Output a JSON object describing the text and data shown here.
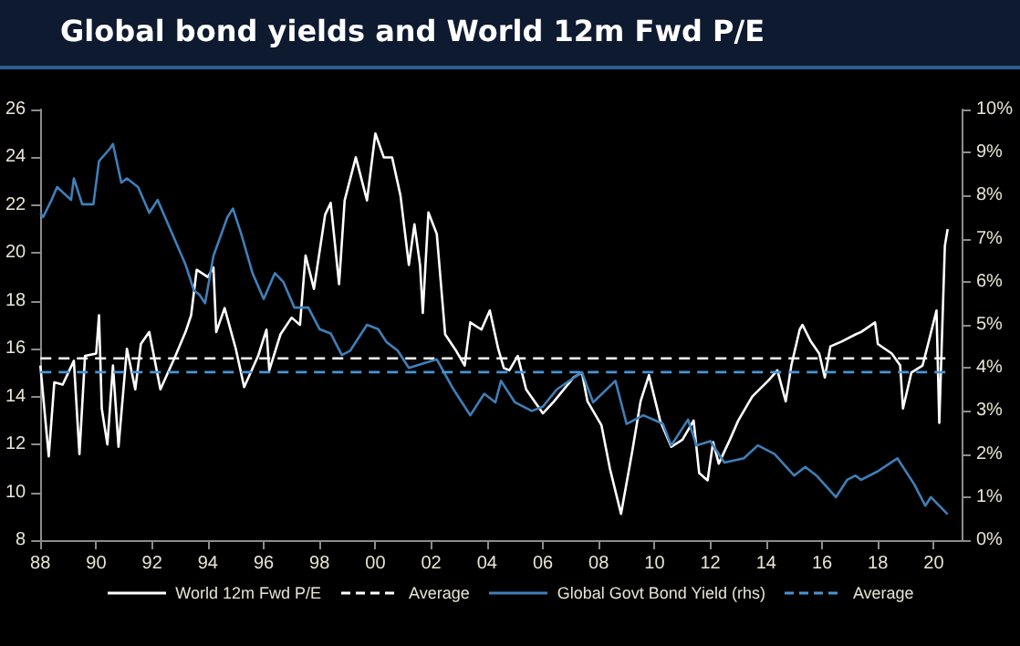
{
  "chart_data": {
    "type": "line",
    "title": "Global bond yields and World 12m Fwd P/E",
    "xlim": [
      1988,
      2021
    ],
    "xticks": [
      {
        "value": 1988,
        "label": "88"
      },
      {
        "value": 1990,
        "label": "90"
      },
      {
        "value": 1992,
        "label": "92"
      },
      {
        "value": 1994,
        "label": "94"
      },
      {
        "value": 1996,
        "label": "96"
      },
      {
        "value": 1998,
        "label": "98"
      },
      {
        "value": 2000,
        "label": "00"
      },
      {
        "value": 2002,
        "label": "02"
      },
      {
        "value": 2004,
        "label": "04"
      },
      {
        "value": 2006,
        "label": "06"
      },
      {
        "value": 2008,
        "label": "08"
      },
      {
        "value": 2010,
        "label": "10"
      },
      {
        "value": 2012,
        "label": "12"
      },
      {
        "value": 2014,
        "label": "14"
      },
      {
        "value": 2016,
        "label": "16"
      },
      {
        "value": 2018,
        "label": "18"
      },
      {
        "value": 2020,
        "label": "20"
      }
    ],
    "ylim": [
      8,
      26
    ],
    "yticks": [
      8,
      10,
      12,
      14,
      16,
      18,
      20,
      22,
      24,
      26
    ],
    "y2lim": [
      0,
      10
    ],
    "y2ticks": [
      {
        "value": 0,
        "label": "0%"
      },
      {
        "value": 1,
        "label": "1%"
      },
      {
        "value": 2,
        "label": "2%"
      },
      {
        "value": 3,
        "label": "3%"
      },
      {
        "value": 4,
        "label": "4%"
      },
      {
        "value": 5,
        "label": "5%"
      },
      {
        "value": 6,
        "label": "6%"
      },
      {
        "value": 7,
        "label": "7%"
      },
      {
        "value": 8,
        "label": "8%"
      },
      {
        "value": 9,
        "label": "9%"
      },
      {
        "value": 10,
        "label": "10%"
      }
    ],
    "grid": false,
    "legend": "bottom",
    "marker": "none",
    "series": [
      {
        "name": "World 12m Fwd P/E",
        "color": "#ffffff",
        "line_style": "solid",
        "x": [
          1988.0,
          1988.3,
          1988.5,
          1988.8,
          1989.2,
          1989.4,
          1989.6,
          1990.0,
          1990.1,
          1990.2,
          1990.4,
          1990.6,
          1990.8,
          1991.1,
          1991.4,
          1991.6,
          1991.9,
          1992.3,
          1992.8,
          1993.2,
          1993.4,
          1993.6,
          1994.0,
          1994.2,
          1994.3,
          1994.6,
          1995.0,
          1995.3,
          1995.8,
          1996.1,
          1996.2,
          1996.6,
          1997.0,
          1997.3,
          1997.5,
          1997.8,
          1998.2,
          1998.4,
          1998.7,
          1998.9,
          1999.3,
          1999.7,
          2000.0,
          2000.3,
          2000.6,
          2000.9,
          2001.2,
          2001.4,
          2001.6,
          2001.7,
          2001.9,
          2002.2,
          2002.5,
          2002.9,
          2003.2,
          2003.4,
          2003.8,
          2004.1,
          2004.4,
          2004.6,
          2004.8,
          2005.1,
          2005.4,
          2006.0,
          2006.4,
          2007.1,
          2007.4,
          2007.6,
          2008.1,
          2008.4,
          2008.8,
          2009.2,
          2009.5,
          2009.8,
          2010.2,
          2010.6,
          2011.0,
          2011.4,
          2011.6,
          2011.9,
          2012.1,
          2012.3,
          2012.7,
          2013.0,
          2013.5,
          2014.1,
          2014.4,
          2014.7,
          2014.9,
          2015.2,
          2015.3,
          2015.6,
          2015.9,
          2016.1,
          2016.3,
          2016.7,
          2017.2,
          2017.4,
          2017.9,
          2018.0,
          2018.5,
          2018.8,
          2018.9,
          2019.2,
          2019.6,
          2019.8,
          2020.1,
          2020.2,
          2020.4,
          2020.5
        ],
        "values": [
          15.3,
          11.5,
          14.6,
          14.5,
          15.5,
          11.6,
          15.7,
          15.8,
          17.4,
          13.5,
          12.0,
          15.3,
          11.9,
          16.0,
          14.3,
          16.2,
          16.7,
          14.3,
          15.6,
          16.7,
          17.4,
          19.3,
          19.0,
          19.4,
          16.7,
          17.7,
          16.0,
          14.4,
          15.7,
          16.8,
          15.1,
          16.6,
          17.3,
          17.0,
          19.9,
          18.5,
          21.6,
          22.1,
          18.7,
          22.2,
          24.0,
          22.2,
          25.0,
          24.0,
          24.0,
          22.4,
          19.5,
          21.2,
          19.5,
          17.5,
          21.7,
          20.8,
          16.6,
          15.9,
          15.3,
          17.1,
          16.8,
          17.6,
          16.0,
          15.2,
          15.1,
          15.7,
          14.3,
          13.3,
          13.8,
          14.8,
          15.0,
          13.8,
          12.8,
          11.0,
          9.1,
          11.7,
          13.8,
          14.9,
          13.0,
          11.9,
          12.2,
          13.0,
          10.8,
          10.5,
          12.1,
          11.2,
          12.2,
          13.0,
          14.0,
          14.7,
          15.1,
          13.8,
          15.3,
          16.8,
          17.0,
          16.3,
          15.8,
          14.8,
          16.1,
          16.3,
          16.6,
          16.7,
          17.1,
          16.2,
          15.8,
          15.3,
          13.5,
          15.0,
          15.3,
          16.2,
          17.6,
          12.9,
          20.3,
          21.0
        ]
      },
      {
        "name": "Average",
        "color": "#ffffff",
        "line_style": "dashed",
        "x": [
          1988,
          2020.5
        ],
        "values": [
          15.6,
          15.6
        ]
      },
      {
        "name": "Global Govt Bond Yield (rhs)",
        "color": "#3f7fb8",
        "line_style": "solid",
        "axis": "y2",
        "x": [
          1988.0,
          1988.1,
          1988.4,
          1988.6,
          1989.1,
          1989.2,
          1989.5,
          1989.9,
          1990.1,
          1990.5,
          1990.6,
          1990.9,
          1991.1,
          1991.5,
          1991.9,
          1992.2,
          1992.6,
          1993.2,
          1993.5,
          1993.7,
          1993.9,
          1994.2,
          1994.7,
          1994.9,
          1995.2,
          1995.6,
          1996.0,
          1996.4,
          1996.7,
          1997.1,
          1997.6,
          1998.0,
          1998.4,
          1998.8,
          1999.1,
          1999.7,
          2000.1,
          2000.4,
          2000.8,
          2001.2,
          2001.7,
          2002.2,
          2002.8,
          2003.1,
          2003.4,
          2003.9,
          2004.3,
          2004.5,
          2005.0,
          2005.6,
          2006.0,
          2006.5,
          2007.4,
          2007.8,
          2008.6,
          2009.0,
          2009.6,
          2010.3,
          2010.6,
          2011.2,
          2011.5,
          2012.0,
          2012.5,
          2013.2,
          2013.7,
          2014.3,
          2015.0,
          2015.4,
          2015.8,
          2016.5,
          2016.9,
          2017.2,
          2017.4,
          2018.0,
          2018.7,
          2019.3,
          2019.7,
          2019.9,
          2020.5
        ],
        "values": [
          7.6,
          7.5,
          7.9,
          8.2,
          7.9,
          8.4,
          7.8,
          7.8,
          8.8,
          9.1,
          9.2,
          8.3,
          8.4,
          8.2,
          7.6,
          7.9,
          7.3,
          6.4,
          5.8,
          5.7,
          5.5,
          6.6,
          7.5,
          7.7,
          7.1,
          6.2,
          5.6,
          6.2,
          6.0,
          5.4,
          5.4,
          4.9,
          4.8,
          4.3,
          4.4,
          5.0,
          4.9,
          4.6,
          4.4,
          4.0,
          4.1,
          4.2,
          3.5,
          3.2,
          2.9,
          3.4,
          3.2,
          3.7,
          3.2,
          3.0,
          3.1,
          3.5,
          3.9,
          3.2,
          3.7,
          2.7,
          2.9,
          2.7,
          2.2,
          2.8,
          2.2,
          2.3,
          1.8,
          1.9,
          2.2,
          2.0,
          1.5,
          1.7,
          1.5,
          1.0,
          1.4,
          1.5,
          1.4,
          1.6,
          1.9,
          1.3,
          0.8,
          1.0,
          0.6
        ]
      },
      {
        "name": "Average",
        "color": "#4a93d6",
        "line_style": "dashed",
        "axis": "y2",
        "x": [
          1988,
          2020.5
        ],
        "values": [
          3.9,
          3.9
        ]
      }
    ]
  }
}
